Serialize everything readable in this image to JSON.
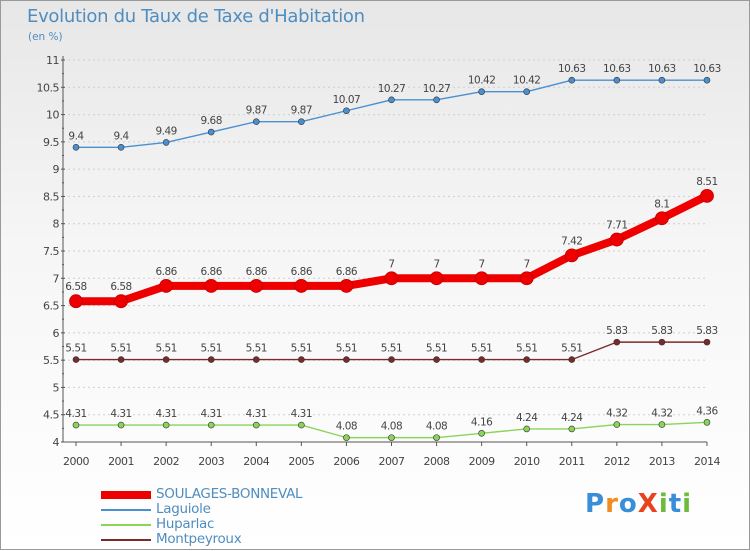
{
  "header": {
    "title": "Evolution du Taux de Taxe d'Habitation",
    "unit": "(en %)"
  },
  "colors": {
    "axis": "#555555",
    "grid": "#cfcfcf",
    "label": "#444444",
    "title": "#4f8dbf"
  },
  "logo": {
    "text": "ProXiti",
    "letters": [
      "P",
      "r",
      "o",
      "X",
      "i",
      "t",
      "i"
    ],
    "colors": [
      "#3a8ed8",
      "#f28c1e",
      "#3a8ed8",
      "#e8431e",
      "#6dbb3c",
      "#3a8ed8",
      "#6dbb3c"
    ]
  },
  "chart_data": {
    "type": "line",
    "title": "Evolution du Taux de Taxe d'Habitation",
    "ylabel": "(en %)",
    "xlabel": "",
    "x": [
      "2000",
      "2001",
      "2002",
      "2003",
      "2004",
      "2005",
      "2006",
      "2007",
      "2008",
      "2009",
      "2010",
      "2011",
      "2012",
      "2013",
      "2014"
    ],
    "ylim": [
      4,
      11
    ],
    "yticks": [
      "4",
      "4.5",
      "5",
      "5.5",
      "6",
      "6.5",
      "7",
      "7.5",
      "8",
      "8.5",
      "9",
      "9.5",
      "10",
      "10.5",
      "11"
    ],
    "yticks_values": [
      4,
      4.5,
      5,
      5.5,
      6,
      6.5,
      7,
      7.5,
      8,
      8.5,
      9,
      9.5,
      10,
      10.5,
      11
    ],
    "grid": "horizontal",
    "legend_position": "bottom-left",
    "series": [
      {
        "name": "SOULAGES-BONNEVAL",
        "color": "#ee0000",
        "emphasis": true,
        "values": [
          6.58,
          6.58,
          6.86,
          6.86,
          6.86,
          6.86,
          6.86,
          7,
          7,
          7,
          7,
          7.42,
          7.71,
          8.1,
          8.51
        ],
        "labels": [
          "6.58",
          "6.58",
          "6.86",
          "6.86",
          "6.86",
          "6.86",
          "6.86",
          "7",
          "7",
          "7",
          "7",
          "7.42",
          "7.71",
          "8.1",
          "8.51"
        ]
      },
      {
        "name": "Laguiole",
        "color": "#4a90d0",
        "values": [
          9.4,
          9.4,
          9.49,
          9.68,
          9.87,
          9.87,
          10.07,
          10.27,
          10.27,
          10.42,
          10.42,
          10.63,
          10.63,
          10.63,
          10.63
        ],
        "labels": [
          "9.4",
          "9.4",
          "9.49",
          "9.68",
          "9.87",
          "9.87",
          "10.07",
          "10.27",
          "10.27",
          "10.42",
          "10.42",
          "10.63",
          "10.63",
          "10.63",
          "10.63"
        ]
      },
      {
        "name": "Huparlac",
        "color": "#8ad45a",
        "values": [
          4.31,
          4.31,
          4.31,
          4.31,
          4.31,
          4.31,
          4.08,
          4.08,
          4.08,
          4.16,
          4.24,
          4.24,
          4.32,
          4.32,
          4.36
        ],
        "labels": [
          "4.31",
          "4.31",
          "4.31",
          "4.31",
          "4.31",
          "4.31",
          "4.08",
          "4.08",
          "4.08",
          "4.16",
          "4.24",
          "4.24",
          "4.32",
          "4.32",
          "4.36"
        ]
      },
      {
        "name": "Montpeyroux",
        "color": "#7a2a2a",
        "values": [
          5.51,
          5.51,
          5.51,
          5.51,
          5.51,
          5.51,
          5.51,
          5.51,
          5.51,
          5.51,
          5.51,
          5.51,
          5.83,
          5.83,
          5.83
        ],
        "labels": [
          "5.51",
          "5.51",
          "5.51",
          "5.51",
          "5.51",
          "5.51",
          "5.51",
          "5.51",
          "5.51",
          "5.51",
          "5.51",
          "5.51",
          "5.83",
          "5.83",
          "5.83"
        ]
      }
    ]
  }
}
